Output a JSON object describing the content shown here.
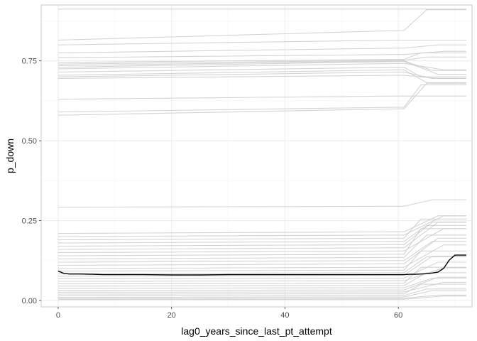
{
  "chart_data": {
    "type": "line",
    "xlabel": "lag0_years_since_last_pt_attempt",
    "ylabel": "p_down",
    "xlim": [
      -3,
      73
    ],
    "ylim": [
      -0.02,
      0.925
    ],
    "x_ticks": [
      0,
      20,
      40,
      60
    ],
    "x_tick_labels": [
      "0",
      "20",
      "40",
      "60"
    ],
    "y_ticks": [
      0,
      0.25,
      0.5,
      0.75
    ],
    "y_tick_labels": [
      "0.00",
      "0.25",
      "0.50",
      "0.75"
    ],
    "grid": true,
    "legend": "none",
    "colors": {
      "background": "#ffffff",
      "grid_major": "#ebebeb",
      "grid_minor": "#f5f5f5",
      "panel_border": "#c8c8c8",
      "ice_line": "#cccccc",
      "average_line": "#000000"
    },
    "x": [
      0,
      1,
      2,
      4,
      6,
      8,
      10,
      15,
      20,
      25,
      30,
      35,
      40,
      45,
      50,
      55,
      60,
      61,
      62,
      63,
      64,
      65,
      66,
      67,
      68,
      69,
      70,
      72
    ],
    "average_series": {
      "values": [
        0.092,
        0.085,
        0.083,
        0.083,
        0.082,
        0.081,
        0.081,
        0.081,
        0.08,
        0.08,
        0.081,
        0.081,
        0.081,
        0.081,
        0.081,
        0.081,
        0.081,
        0.081,
        0.082,
        0.082,
        0.083,
        0.084,
        0.086,
        0.089,
        0.101,
        0.127,
        0.142,
        0.142
      ]
    },
    "ice_curves": [
      {
        "start": 0.912,
        "end": 0.912,
        "jump": 0.0
      },
      {
        "start": 0.815,
        "end": 0.845,
        "jump": 0.065
      },
      {
        "start": 0.8,
        "end": 0.815,
        "jump": 0.0
      },
      {
        "start": 0.775,
        "end": 0.79,
        "jump": 0.01
      },
      {
        "start": 0.76,
        "end": 0.77,
        "jump": 0.01
      },
      {
        "start": 0.745,
        "end": 0.755,
        "jump": 0.02
      },
      {
        "start": 0.74,
        "end": 0.752,
        "jump": 0.01
      },
      {
        "start": 0.735,
        "end": 0.75,
        "jump": -0.03
      },
      {
        "start": 0.73,
        "end": 0.748,
        "jump": -0.04
      },
      {
        "start": 0.725,
        "end": 0.742,
        "jump": -0.02
      },
      {
        "start": 0.715,
        "end": 0.73,
        "jump": -0.03
      },
      {
        "start": 0.705,
        "end": 0.722,
        "jump": -0.04
      },
      {
        "start": 0.7,
        "end": 0.715,
        "jump": -0.02
      },
      {
        "start": 0.695,
        "end": 0.705,
        "jump": -0.01
      },
      {
        "start": 0.63,
        "end": 0.64,
        "jump": 0.0
      },
      {
        "start": 0.59,
        "end": 0.605,
        "jump": 0.07
      },
      {
        "start": 0.58,
        "end": 0.6,
        "jump": 0.08
      },
      {
        "start": 0.292,
        "end": 0.295,
        "jump": 0.02
      },
      {
        "start": 0.21,
        "end": 0.215,
        "jump": 0.05
      },
      {
        "start": 0.2,
        "end": 0.205,
        "jump": 0.06
      },
      {
        "start": 0.19,
        "end": 0.195,
        "jump": 0.06
      },
      {
        "start": 0.18,
        "end": 0.185,
        "jump": 0.05
      },
      {
        "start": 0.17,
        "end": 0.175,
        "jump": 0.07
      },
      {
        "start": 0.16,
        "end": 0.165,
        "jump": 0.08
      },
      {
        "start": 0.15,
        "end": 0.155,
        "jump": 0.07
      },
      {
        "start": 0.14,
        "end": 0.145,
        "jump": 0.08
      },
      {
        "start": 0.13,
        "end": 0.135,
        "jump": 0.07
      },
      {
        "start": 0.12,
        "end": 0.125,
        "jump": 0.06
      },
      {
        "start": 0.11,
        "end": 0.115,
        "jump": 0.08
      },
      {
        "start": 0.1,
        "end": 0.104,
        "jump": 0.07
      },
      {
        "start": 0.092,
        "end": 0.095,
        "jump": 0.06
      },
      {
        "start": 0.084,
        "end": 0.087,
        "jump": 0.05
      },
      {
        "start": 0.076,
        "end": 0.079,
        "jump": 0.06
      },
      {
        "start": 0.068,
        "end": 0.07,
        "jump": 0.05
      },
      {
        "start": 0.06,
        "end": 0.062,
        "jump": 0.04
      },
      {
        "start": 0.052,
        "end": 0.054,
        "jump": 0.05
      },
      {
        "start": 0.045,
        "end": 0.047,
        "jump": 0.04
      },
      {
        "start": 0.038,
        "end": 0.04,
        "jump": 0.03
      },
      {
        "start": 0.032,
        "end": 0.033,
        "jump": 0.04
      },
      {
        "start": 0.026,
        "end": 0.027,
        "jump": 0.03
      },
      {
        "start": 0.02,
        "end": 0.021,
        "jump": 0.03
      },
      {
        "start": 0.015,
        "end": 0.016,
        "jump": 0.02
      },
      {
        "start": 0.01,
        "end": 0.011,
        "jump": 0.02
      },
      {
        "start": 0.006,
        "end": 0.007,
        "jump": 0.01
      },
      {
        "start": 0.003,
        "end": 0.004,
        "jump": 0.01
      }
    ]
  }
}
